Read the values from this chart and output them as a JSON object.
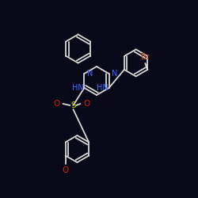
{
  "background_color": "#080818",
  "bond_color": "#d8d8d8",
  "atom_colors": {
    "N": "#4466ff",
    "O": "#cc2200",
    "S": "#cccc00",
    "Br": "#cc4400",
    "C": "#d8d8d8",
    "H": "#d8d8d8"
  },
  "figsize": [
    2.5,
    2.5
  ],
  "dpi": 100
}
